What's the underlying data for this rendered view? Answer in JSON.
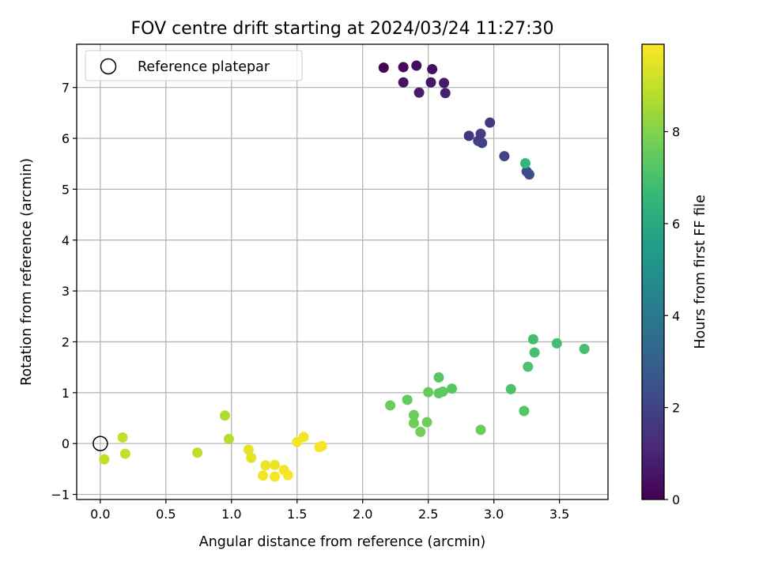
{
  "chart_data": {
    "type": "scatter",
    "title": "FOV centre drift starting at 2024/03/24 11:27:30",
    "xlabel": "Angular distance from reference (arcmin)",
    "ylabel": "Rotation from reference (arcmin)",
    "xlim": [
      -0.18,
      3.87
    ],
    "ylim": [
      -1.1,
      7.85
    ],
    "xticks": [
      0.0,
      0.5,
      1.0,
      1.5,
      2.0,
      2.5,
      3.0,
      3.5
    ],
    "xtick_labels": [
      "0.0",
      "0.5",
      "1.0",
      "1.5",
      "2.0",
      "2.5",
      "3.0",
      "3.5"
    ],
    "yticks": [
      -1,
      0,
      1,
      2,
      3,
      4,
      5,
      6,
      7
    ],
    "ytick_labels": [
      "−1",
      "0",
      "1",
      "2",
      "3",
      "4",
      "5",
      "6",
      "7"
    ],
    "grid": true,
    "legend": {
      "placement": "top-left",
      "entries": [
        {
          "label": "Reference platepar",
          "marker": "hollow-circle"
        }
      ]
    },
    "reference_point": {
      "x": 0.0,
      "y": 0.0
    },
    "colorbar": {
      "label": "Hours from first FF file",
      "colormap": "viridis",
      "range": [
        0,
        9.9
      ],
      "ticks": [
        0,
        2,
        4,
        6,
        8
      ],
      "tick_labels": [
        "0",
        "2",
        "4",
        "6",
        "8"
      ]
    },
    "points": [
      {
        "x": 2.16,
        "y": 7.39,
        "hours": 0.1
      },
      {
        "x": 2.31,
        "y": 7.4,
        "hours": 0.2
      },
      {
        "x": 2.41,
        "y": 7.43,
        "hours": 0.3
      },
      {
        "x": 2.53,
        "y": 7.36,
        "hours": 0.4
      },
      {
        "x": 2.31,
        "y": 7.1,
        "hours": 0.5
      },
      {
        "x": 2.52,
        "y": 7.1,
        "hours": 0.6
      },
      {
        "x": 2.62,
        "y": 7.09,
        "hours": 0.7
      },
      {
        "x": 2.43,
        "y": 6.9,
        "hours": 0.8
      },
      {
        "x": 2.63,
        "y": 6.89,
        "hours": 0.9
      },
      {
        "x": 2.81,
        "y": 6.05,
        "hours": 1.6
      },
      {
        "x": 2.97,
        "y": 6.31,
        "hours": 1.7
      },
      {
        "x": 2.9,
        "y": 6.09,
        "hours": 1.8
      },
      {
        "x": 2.88,
        "y": 5.95,
        "hours": 1.8
      },
      {
        "x": 2.91,
        "y": 5.91,
        "hours": 1.9
      },
      {
        "x": 3.08,
        "y": 5.65,
        "hours": 2.0
      },
      {
        "x": 3.25,
        "y": 5.35,
        "hours": 2.2
      },
      {
        "x": 3.27,
        "y": 5.29,
        "hours": 2.3
      },
      {
        "x": 3.24,
        "y": 5.51,
        "hours": 6.5
      },
      {
        "x": 3.3,
        "y": 2.05,
        "hours": 6.9
      },
      {
        "x": 3.48,
        "y": 1.97,
        "hours": 6.9
      },
      {
        "x": 3.69,
        "y": 1.86,
        "hours": 7.0
      },
      {
        "x": 3.31,
        "y": 1.79,
        "hours": 7.0
      },
      {
        "x": 3.26,
        "y": 1.51,
        "hours": 7.1
      },
      {
        "x": 3.13,
        "y": 1.07,
        "hours": 7.1
      },
      {
        "x": 3.23,
        "y": 0.64,
        "hours": 7.2
      },
      {
        "x": 2.58,
        "y": 1.3,
        "hours": 7.3
      },
      {
        "x": 2.68,
        "y": 1.08,
        "hours": 7.3
      },
      {
        "x": 2.61,
        "y": 1.02,
        "hours": 7.4
      },
      {
        "x": 2.58,
        "y": 0.99,
        "hours": 7.4
      },
      {
        "x": 2.5,
        "y": 1.01,
        "hours": 7.5
      },
      {
        "x": 2.34,
        "y": 0.86,
        "hours": 7.5
      },
      {
        "x": 2.21,
        "y": 0.75,
        "hours": 7.6
      },
      {
        "x": 2.39,
        "y": 0.56,
        "hours": 7.6
      },
      {
        "x": 2.49,
        "y": 0.42,
        "hours": 7.7
      },
      {
        "x": 2.39,
        "y": 0.4,
        "hours": 7.7
      },
      {
        "x": 2.44,
        "y": 0.23,
        "hours": 7.8
      },
      {
        "x": 2.9,
        "y": 0.27,
        "hours": 7.6
      },
      {
        "x": 0.95,
        "y": 0.55,
        "hours": 8.7
      },
      {
        "x": 0.98,
        "y": 0.09,
        "hours": 8.8
      },
      {
        "x": 0.74,
        "y": -0.18,
        "hours": 8.9
      },
      {
        "x": 0.17,
        "y": 0.12,
        "hours": 9.0
      },
      {
        "x": 0.19,
        "y": -0.2,
        "hours": 9.0
      },
      {
        "x": 0.03,
        "y": -0.31,
        "hours": 9.0
      },
      {
        "x": 1.13,
        "y": -0.12,
        "hours": 9.5
      },
      {
        "x": 1.15,
        "y": -0.28,
        "hours": 9.5
      },
      {
        "x": 1.26,
        "y": -0.43,
        "hours": 9.6
      },
      {
        "x": 1.33,
        "y": -0.42,
        "hours": 9.6
      },
      {
        "x": 1.4,
        "y": -0.52,
        "hours": 9.7
      },
      {
        "x": 1.24,
        "y": -0.63,
        "hours": 9.7
      },
      {
        "x": 1.33,
        "y": -0.65,
        "hours": 9.8
      },
      {
        "x": 1.43,
        "y": -0.62,
        "hours": 9.8
      },
      {
        "x": 1.5,
        "y": 0.03,
        "hours": 9.7
      },
      {
        "x": 1.55,
        "y": 0.13,
        "hours": 9.7
      },
      {
        "x": 1.67,
        "y": -0.07,
        "hours": 9.8
      },
      {
        "x": 1.69,
        "y": -0.05,
        "hours": 9.8
      }
    ]
  }
}
